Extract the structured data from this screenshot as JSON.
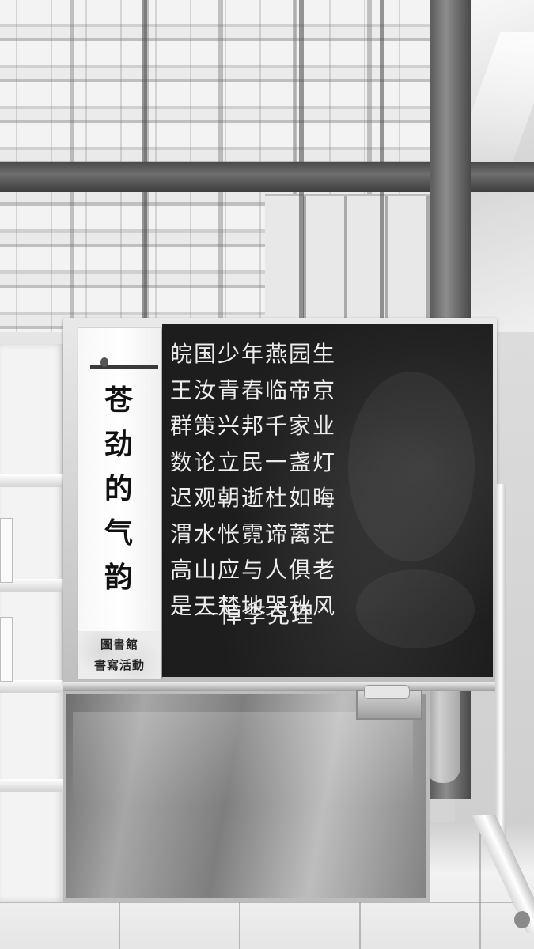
{
  "banner": {
    "title_chars": [
      "苍",
      "劲",
      "的",
      "气",
      "韵"
    ],
    "footer_line_1": "圖書館",
    "footer_line_2": "書寫活動"
  },
  "chalkboard": {
    "poem_lines": [
      "皖国少年燕园生",
      "王汝青春临帝京",
      "群策兴邦千家业",
      "数论立民一盏灯",
      "迟观朝逝杜如晦",
      "渭水怅霓谛蓠茫",
      "高山应与人俱老",
      "是天楚地哭秋风"
    ],
    "signature": "一悼李克理"
  }
}
